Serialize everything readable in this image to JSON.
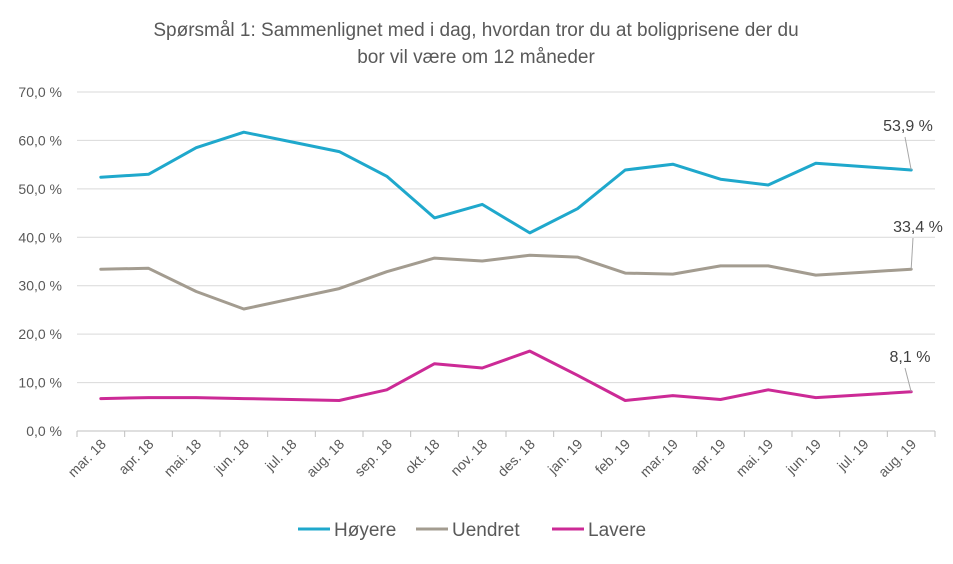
{
  "chart_data": {
    "type": "line",
    "title": "Spørsmål 1: Sammenlignet  med i dag, hvordan tror du at boligprisene  der du bor vil være om 12 måneder",
    "title_lines": [
      "Spørsmål 1: Sammenlignet  med i dag, hvordan tror du at boligprisene  der du",
      "bor vil være om 12 måneder"
    ],
    "xlabel": "",
    "ylabel": "",
    "ylim": [
      0,
      70
    ],
    "yticks": [
      "0,0 %",
      "10,0 %",
      "20,0 %",
      "30,0 %",
      "40,0 %",
      "50,0 %",
      "60,0 %",
      "70,0 %"
    ],
    "grid": true,
    "legend_position": "bottom",
    "categories": [
      "mar. 18",
      "apr. 18",
      "mai. 18",
      "jun. 18",
      "jul. 18",
      "aug. 18",
      "sep. 18",
      "okt. 18",
      "nov. 18",
      "des. 18",
      "jan. 19",
      "feb. 19",
      "mar. 19",
      "apr. 19",
      "mai. 19",
      "jun. 19",
      "jul. 19",
      "aug. 19"
    ],
    "series": [
      {
        "name": "Høyere",
        "color": "#1fa8cc",
        "values": [
          52.4,
          53.0,
          58.5,
          61.7,
          59.7,
          57.7,
          52.6,
          44.0,
          46.8,
          40.9,
          45.9,
          53.9,
          55.1,
          52.0,
          50.8,
          55.3,
          54.6,
          53.9
        ],
        "end_label": "53,9 %"
      },
      {
        "name": "Uendret",
        "color": "#a39c90",
        "values": [
          33.4,
          33.6,
          28.8,
          25.2,
          27.3,
          29.4,
          32.9,
          35.7,
          35.1,
          36.3,
          35.9,
          32.6,
          32.4,
          34.1,
          34.1,
          32.2,
          32.8,
          33.4
        ],
        "end_label": "33,4 %"
      },
      {
        "name": "Lavere",
        "color": "#cc2a96",
        "values": [
          6.7,
          6.9,
          6.9,
          6.7,
          6.5,
          6.3,
          8.5,
          13.9,
          13.0,
          16.5,
          11.5,
          6.3,
          7.3,
          6.5,
          8.5,
          6.9,
          7.5,
          8.1
        ],
        "end_label": "8,1 %"
      }
    ]
  }
}
